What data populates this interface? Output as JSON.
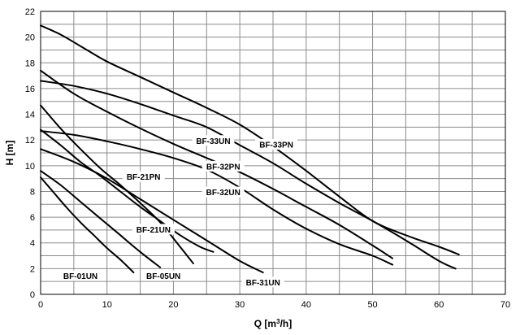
{
  "chart_data": {
    "type": "line",
    "xlabel_main": "Q [m",
    "xlabel_sup": "3",
    "xlabel_tail": "/h]",
    "ylabel": "H [m]",
    "xlim": [
      0,
      70
    ],
    "ylim": [
      0,
      22
    ],
    "xticks": [
      0,
      10,
      20,
      30,
      40,
      50,
      60,
      70
    ],
    "yticks": [
      0,
      2,
      4,
      6,
      8,
      10,
      12,
      14,
      16,
      18,
      20,
      22
    ],
    "grid": true,
    "legend": "none",
    "series": [
      {
        "name": "BF-01UN",
        "x": [
          0,
          2,
          4,
          6,
          8,
          10,
          12,
          14
        ],
        "y": [
          9.1,
          7.9,
          6.7,
          5.6,
          4.6,
          3.6,
          2.7,
          1.7
        ]
      },
      {
        "name": "BF-05UN",
        "x": [
          0,
          3,
          6,
          9,
          12,
          15,
          18
        ],
        "y": [
          9.6,
          8.5,
          7.2,
          5.9,
          4.6,
          3.3,
          2.1
        ]
      },
      {
        "name": "BF-21UN",
        "x": [
          0,
          3,
          6,
          9,
          12,
          15,
          18,
          21,
          24,
          26
        ],
        "y": [
          12.8,
          11.6,
          10.3,
          9.2,
          8.0,
          6.8,
          5.7,
          4.6,
          3.7,
          3.3
        ]
      },
      {
        "name": "BF-21PN",
        "x": [
          0,
          3,
          6,
          9,
          12,
          15,
          18,
          21,
          23
        ],
        "y": [
          14.7,
          12.9,
          11.3,
          9.8,
          8.5,
          7.1,
          5.6,
          3.7,
          2.4
        ]
      },
      {
        "name": "BF-31UN",
        "x": [
          0,
          5,
          10,
          15,
          20,
          25,
          30,
          33.5
        ],
        "y": [
          11.3,
          10.3,
          9.0,
          7.4,
          5.8,
          4.2,
          2.6,
          1.7
        ]
      },
      {
        "name": "BF-32UN",
        "x": [
          0,
          5,
          10,
          15,
          20,
          25,
          30,
          35,
          40,
          45,
          50,
          53
        ],
        "y": [
          12.7,
          12.4,
          11.9,
          11.3,
          10.6,
          9.7,
          8.3,
          6.6,
          5.1,
          3.9,
          3.0,
          2.3
        ]
      },
      {
        "name": "BF-32PN",
        "x": [
          0,
          5,
          10,
          15,
          20,
          25,
          30,
          35,
          40,
          45,
          50,
          53
        ],
        "y": [
          17.4,
          15.6,
          14.2,
          12.9,
          11.7,
          10.6,
          9.5,
          8.2,
          6.8,
          5.4,
          3.8,
          2.8
        ]
      },
      {
        "name": "BF-33UN",
        "x": [
          0,
          5,
          10,
          15,
          20,
          25,
          30,
          35,
          40,
          45,
          50,
          55,
          60,
          62.5
        ],
        "y": [
          16.6,
          16.2,
          15.6,
          14.8,
          13.9,
          13.0,
          11.6,
          10.2,
          8.6,
          7.1,
          5.7,
          4.2,
          2.6,
          2.0
        ]
      },
      {
        "name": "BF-33PN",
        "x": [
          0,
          3,
          6,
          10,
          15,
          20,
          25,
          30,
          35,
          40,
          45,
          50,
          55,
          60,
          63
        ],
        "y": [
          20.9,
          20.2,
          19.3,
          18.1,
          16.9,
          15.7,
          14.5,
          13.2,
          11.5,
          9.6,
          7.6,
          5.7,
          4.6,
          3.7,
          3.1
        ]
      }
    ],
    "labels": [
      {
        "text": "BF-01UN",
        "x": 6,
        "y": 1.4
      },
      {
        "text": "BF-05UN",
        "x": 18.5,
        "y": 1.4
      },
      {
        "text": "BF-21UN",
        "x": 17,
        "y": 5.0
      },
      {
        "text": "BF-21PN",
        "x": 15.5,
        "y": 9.1
      },
      {
        "text": "BF-31UN",
        "x": 33.5,
        "y": 0.9
      },
      {
        "text": "BF-32UN",
        "x": 27.5,
        "y": 7.9
      },
      {
        "text": "BF-32PN",
        "x": 27.5,
        "y": 9.9
      },
      {
        "text": "BF-33UN",
        "x": 26,
        "y": 11.9
      },
      {
        "text": "BF-33PN",
        "x": 35.5,
        "y": 11.6
      }
    ]
  }
}
